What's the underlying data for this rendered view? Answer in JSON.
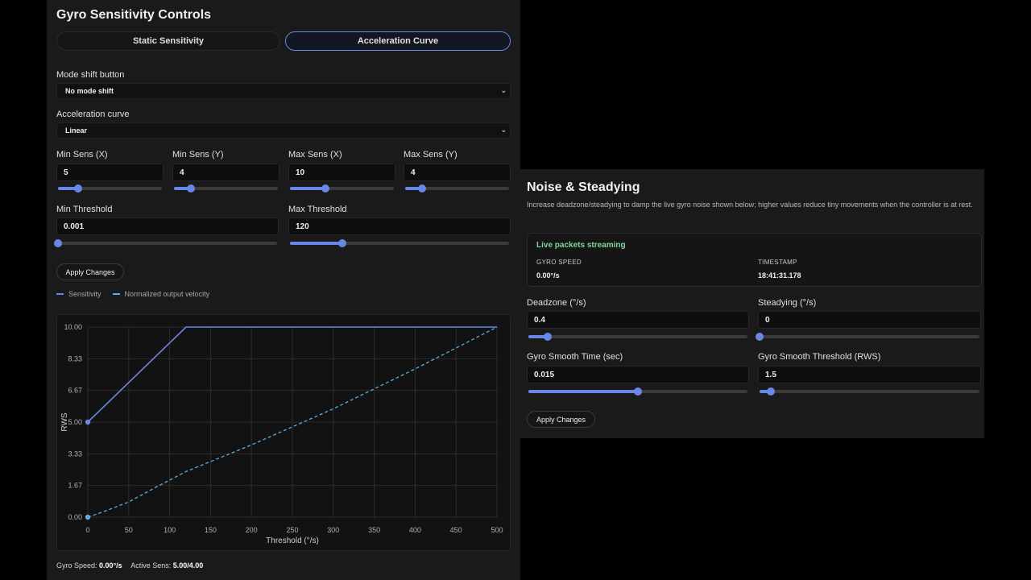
{
  "left": {
    "title": "Gyro Sensitivity Controls",
    "tabs": [
      {
        "label": "Static Sensitivity",
        "active": false
      },
      {
        "label": "Acceleration Curve",
        "active": true
      }
    ],
    "mode_shift": {
      "label": "Mode shift button",
      "value": "No mode shift"
    },
    "accel_curve": {
      "label": "Acceleration curve",
      "value": "Linear"
    },
    "fields": [
      {
        "label": "Min Sens (X)",
        "value": "5"
      },
      {
        "label": "Min Sens (Y)",
        "value": "4"
      },
      {
        "label": "Max Sens (X)",
        "value": "10"
      },
      {
        "label": "Max Sens (Y)",
        "value": "4"
      },
      {
        "label": "Min Threshold",
        "value": "0.001"
      },
      {
        "label": "Max Threshold",
        "value": "120"
      }
    ],
    "slider_levels": {
      "min_sens_x": 0.19,
      "min_sens_y": 0.16,
      "max_sens_x": 0.34,
      "max_sens_y": 0.16,
      "min_threshold": 0.0,
      "max_threshold": 0.24
    },
    "apply_label": "Apply Changes",
    "legend": [
      {
        "name": "Sensitivity",
        "style": "solid"
      },
      {
        "name": "Normalized output velocity",
        "style": "dashed"
      }
    ],
    "status": {
      "speed_label": "Gyro Speed:",
      "speed_value": "0.00°/s",
      "active_label": "Active Sens:",
      "active_value": "5.00/4.00"
    }
  },
  "chart_data": {
    "type": "line",
    "xlabel": "Threshold (°/s)",
    "ylabel": "RWS",
    "xlim": [
      0,
      500
    ],
    "ylim": [
      0,
      10
    ],
    "xticks": [
      "0",
      "50",
      "100",
      "150",
      "200",
      "250",
      "300",
      "350",
      "400",
      "450",
      "500"
    ],
    "yticks": [
      "0.00",
      "1.67",
      "3.33",
      "5.00",
      "6.67",
      "8.33",
      "10.00"
    ],
    "grid": true,
    "series": [
      {
        "name": "Sensitivity",
        "style": "solid",
        "x": [
          0,
          120,
          500
        ],
        "y": [
          5,
          10,
          10
        ],
        "markers": [
          [
            0,
            5
          ]
        ]
      },
      {
        "name": "Normalized output velocity",
        "style": "dashed",
        "x": [
          0,
          20,
          50,
          80,
          120,
          200,
          300,
          400,
          500
        ],
        "y": [
          0,
          0.3,
          0.8,
          1.5,
          2.4,
          3.8,
          5.7,
          7.8,
          10
        ],
        "markers": [
          [
            0,
            0
          ]
        ]
      }
    ]
  },
  "right": {
    "title": "Noise & Steadying",
    "description": "Increase deadzone/steadying to damp the live gyro noise shown below; higher values reduce tiny movements when the controller is at rest.",
    "live": {
      "status": "Live packets streaming",
      "speed_caption": "GYRO SPEED",
      "speed_value": "0.00°/s",
      "timestamp_caption": "TIMESTAMP",
      "timestamp_value": "18:41:31.178"
    },
    "fields": [
      {
        "label": "Deadzone (°/s)",
        "value": "0.4"
      },
      {
        "label": "Steadying (°/s)",
        "value": "0"
      },
      {
        "label": "Gyro Smooth Time (sec)",
        "value": "0.015"
      },
      {
        "label": "Gyro Smooth Threshold (RWS)",
        "value": "1.5"
      }
    ],
    "slider_levels": {
      "deadzone": 0.09,
      "steadying": 0.0,
      "smooth_time": 0.5,
      "smooth_threshold": 0.05
    },
    "apply_label": "Apply Changes"
  },
  "colors": {
    "accent": "#6a86e6",
    "dashed": "#5aaee0",
    "live_green": "#7fd69a",
    "panel": "#1a1a1a"
  }
}
